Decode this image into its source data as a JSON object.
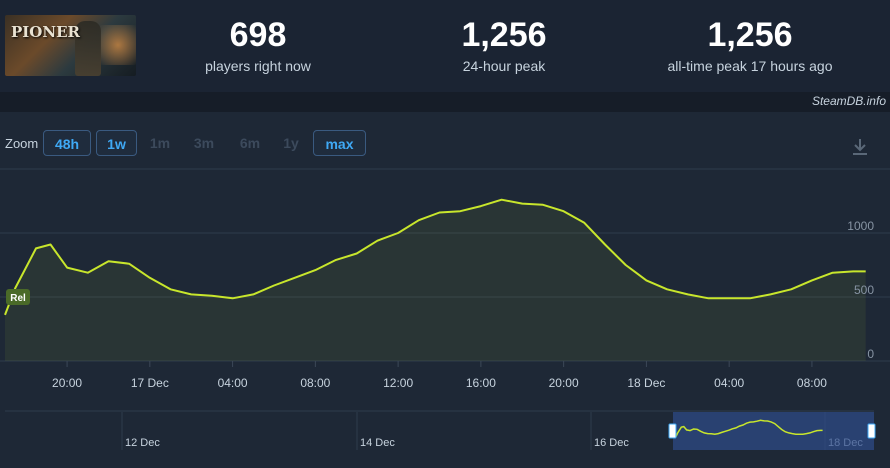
{
  "game": {
    "logo_text": "PIONER"
  },
  "stats": [
    {
      "value": "698",
      "label": "players right now"
    },
    {
      "value": "1,256",
      "label": "24-hour peak"
    },
    {
      "value": "1,256",
      "label": "all-time peak 17 hours ago"
    }
  ],
  "attribution": "SteamDB.info",
  "zoom": {
    "label": "Zoom",
    "buttons": [
      {
        "label": "48h",
        "active": true
      },
      {
        "label": "1w",
        "active": true
      },
      {
        "label": "1m",
        "active": false
      },
      {
        "label": "3m",
        "active": false
      },
      {
        "label": "6m",
        "active": false
      },
      {
        "label": "1y",
        "active": false
      },
      {
        "label": "max",
        "active": true
      }
    ]
  },
  "colors": {
    "line": "#c8e62c",
    "accent": "#3fa9f5",
    "background": "#1b2433"
  },
  "chart_data": {
    "type": "line",
    "series": [
      {
        "x": [
          -7.0,
          -6.5,
          -5.5,
          -4.8,
          -4.0,
          -3.0,
          -2.0,
          -1.0,
          0.0,
          1.0,
          2.0,
          3.0,
          4.0,
          5.0,
          6.0,
          7.0,
          8.0,
          9.0,
          10.0,
          11.0,
          12.0,
          13.0,
          14.0,
          15.0,
          16.0,
          17.0,
          18.0,
          19.0,
          20.0,
          21.0,
          22.0,
          23.0,
          24.0,
          25.0,
          26.0,
          27.0,
          28.0,
          29.0,
          30.0,
          31.0,
          32.0,
          33.0,
          34.0,
          34.6
        ],
        "y": [
          360,
          570,
          880,
          910,
          730,
          690,
          780,
          760,
          650,
          560,
          520,
          510,
          490,
          520,
          590,
          650,
          710,
          790,
          840,
          940,
          1000,
          1100,
          1160,
          1170,
          1210,
          1260,
          1230,
          1220,
          1170,
          1080,
          910,
          750,
          630,
          560,
          520,
          490,
          490,
          490,
          520,
          560,
          630,
          690,
          700,
          700
        ]
      }
    ],
    "x_ticks": [
      "20:00",
      "17 Dec",
      "04:00",
      "08:00",
      "12:00",
      "16:00",
      "20:00",
      "18 Dec",
      "04:00",
      "08:00"
    ],
    "x_tick_values": [
      -4,
      0,
      4,
      8,
      12,
      16,
      20,
      24,
      28,
      32
    ],
    "y_ticks": [
      0,
      500,
      1000
    ],
    "ylim": [
      0,
      1500
    ],
    "xlim": [
      -7,
      35
    ],
    "annotations": [
      {
        "label": "Rel",
        "x": -7,
        "y": 500
      }
    ],
    "navigator": {
      "labels": [
        "12 Dec",
        "14 Dec",
        "16 Dec",
        "18 Dec"
      ]
    },
    "grid": true
  }
}
